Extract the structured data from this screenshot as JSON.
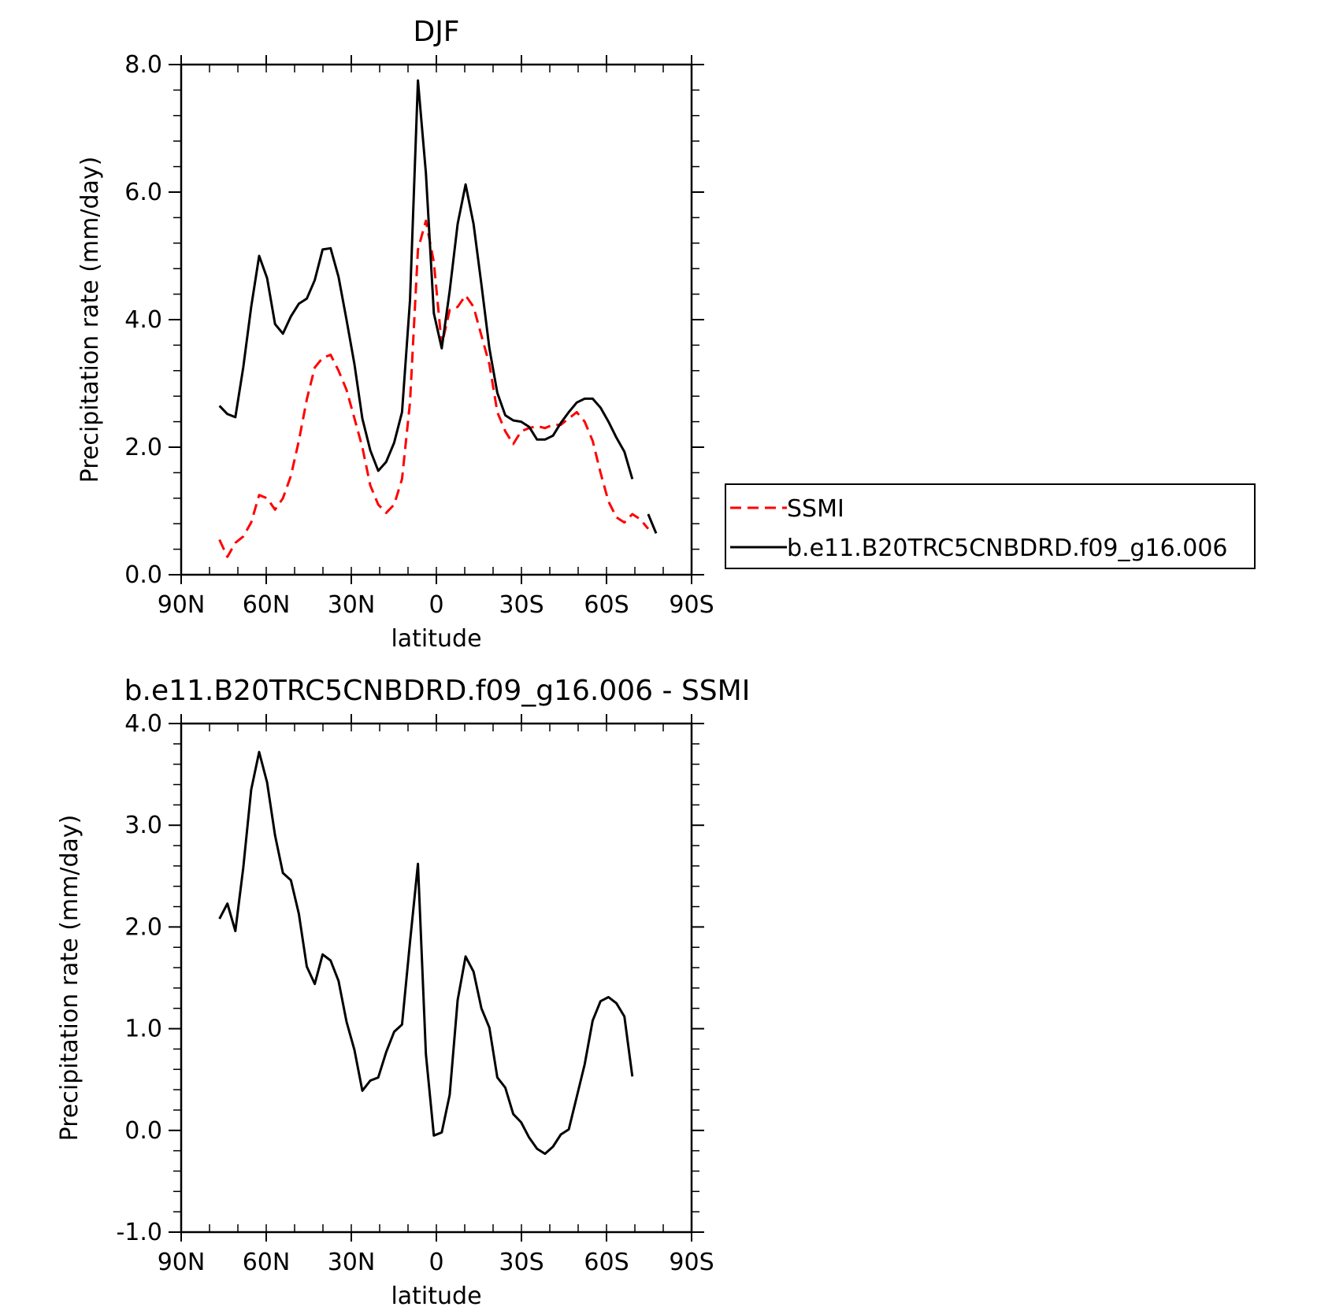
{
  "chart_data": [
    {
      "type": "line",
      "title": "DJF",
      "xlabel": "latitude",
      "ylabel": "Precipitation rate (mm/day)",
      "xlim": [
        90,
        -90
      ],
      "ylim": [
        0,
        8
      ],
      "xticks": [
        {
          "v": 90,
          "label": "90N"
        },
        {
          "v": 60,
          "label": "60N"
        },
        {
          "v": 30,
          "label": "30N"
        },
        {
          "v": 0,
          "label": "0"
        },
        {
          "v": -30,
          "label": "30S"
        },
        {
          "v": -60,
          "label": "60S"
        },
        {
          "v": -90,
          "label": "90S"
        }
      ],
      "yticks": [
        {
          "v": 0,
          "label": "0.0"
        },
        {
          "v": 2,
          "label": "2.0"
        },
        {
          "v": 4,
          "label": "4.0"
        },
        {
          "v": 6,
          "label": "6.0"
        },
        {
          "v": 8,
          "label": "8.0"
        }
      ],
      "legend": {
        "placement": "right"
      },
      "series": [
        {
          "name": "SSMI",
          "color": "#ff0000",
          "dash": true,
          "x": [
            76.5,
            73.7,
            70.9,
            68.1,
            65.3,
            62.5,
            59.7,
            56.9,
            54.1,
            51.3,
            48.5,
            45.7,
            42.9,
            40.1,
            37.3,
            34.5,
            31.7,
            28.9,
            26.1,
            23.3,
            20.5,
            17.7,
            14.9,
            12.1,
            9.3,
            6.5,
            3.7,
            0.9,
            -1.9,
            -4.7,
            -7.5,
            -10.3,
            -13.1,
            -15.9,
            -18.7,
            -21.5,
            -24.3,
            -27.1,
            -29.9,
            -32.7,
            -35.5,
            -38.3,
            -41.1,
            -43.9,
            -46.7,
            -49.5,
            -52.3,
            -55.1,
            -57.9,
            -60.7,
            -63.5,
            -66.3,
            -69.1,
            -71.9,
            -74.7
          ],
          "y": [
            0.55,
            0.28,
            0.5,
            0.6,
            0.82,
            1.25,
            1.2,
            1.02,
            1.2,
            1.55,
            2.1,
            2.75,
            3.25,
            3.4,
            3.45,
            3.2,
            2.9,
            2.45,
            2.0,
            1.4,
            1.1,
            0.97,
            1.1,
            1.5,
            2.7,
            5.1,
            5.55,
            4.9,
            3.6,
            4.15,
            4.2,
            4.38,
            4.2,
            3.75,
            3.3,
            2.55,
            2.25,
            2.05,
            2.25,
            2.3,
            2.33,
            2.3,
            2.35,
            2.35,
            2.45,
            2.55,
            2.4,
            2.1,
            1.6,
            1.15,
            0.9,
            0.82,
            0.95,
            0.87,
            0.72
          ]
        },
        {
          "name": "b.e11.B20TRC5CNBDRD.f09_g16.006",
          "color": "#000000",
          "dash": false,
          "x": [
            76.5,
            73.7,
            70.9,
            68.1,
            65.3,
            62.5,
            59.7,
            56.9,
            54.1,
            51.3,
            48.5,
            45.7,
            42.9,
            40.1,
            37.3,
            34.5,
            31.7,
            28.9,
            26.1,
            23.3,
            20.5,
            17.7,
            14.9,
            12.1,
            9.3,
            6.5,
            3.7,
            0.9,
            -1.9,
            -4.7,
            -7.5,
            -10.3,
            -13.1,
            -15.9,
            -18.7,
            -21.5,
            -24.3,
            -27.1,
            -29.9,
            -32.7,
            -35.5,
            -38.3,
            -41.1,
            -43.9,
            -46.7,
            -49.5,
            -52.3,
            -55.1,
            -57.9,
            -60.7,
            -63.5,
            -66.3,
            -69.1,
            null,
            -74.7,
            -77.5
          ],
          "y": [
            2.65,
            2.52,
            2.47,
            3.25,
            4.2,
            5.0,
            4.65,
            3.93,
            3.78,
            4.05,
            4.25,
            4.33,
            4.62,
            5.1,
            5.12,
            4.67,
            4.0,
            3.3,
            2.45,
            1.95,
            1.63,
            1.77,
            2.07,
            2.55,
            4.3,
            7.75,
            6.3,
            4.1,
            3.55,
            4.45,
            5.5,
            6.12,
            5.5,
            4.55,
            3.55,
            2.85,
            2.5,
            2.42,
            2.4,
            2.32,
            2.12,
            2.12,
            2.18,
            2.38,
            2.55,
            2.7,
            2.76,
            2.76,
            2.62,
            2.4,
            2.15,
            1.93,
            1.5,
            null,
            0.95,
            0.65
          ]
        }
      ]
    },
    {
      "type": "line",
      "title": "b.e11.B20TRC5CNBDRD.f09_g16.006 - SSMI",
      "xlabel": "latitude",
      "ylabel": "Precipitation rate (mm/day)",
      "xlim": [
        90,
        -90
      ],
      "ylim": [
        -1,
        4
      ],
      "xticks": [
        {
          "v": 90,
          "label": "90N"
        },
        {
          "v": 60,
          "label": "60N"
        },
        {
          "v": 30,
          "label": "30N"
        },
        {
          "v": 0,
          "label": "0"
        },
        {
          "v": -30,
          "label": "30S"
        },
        {
          "v": -60,
          "label": "60S"
        },
        {
          "v": -90,
          "label": "90S"
        }
      ],
      "yticks": [
        {
          "v": -1,
          "label": "-1.0"
        },
        {
          "v": 0,
          "label": "0.0"
        },
        {
          "v": 1,
          "label": "1.0"
        },
        {
          "v": 2,
          "label": "2.0"
        },
        {
          "v": 3,
          "label": "3.0"
        },
        {
          "v": 4,
          "label": "4.0"
        }
      ],
      "series": [
        {
          "color": "#000000",
          "dash": false,
          "x": [
            76.5,
            73.7,
            70.9,
            68.1,
            65.3,
            62.5,
            59.7,
            56.9,
            54.1,
            51.3,
            48.5,
            45.7,
            42.9,
            40.1,
            37.3,
            34.5,
            31.7,
            28.9,
            26.1,
            23.3,
            20.5,
            17.7,
            14.9,
            12.1,
            9.3,
            6.5,
            3.7,
            0.9,
            -1.9,
            -4.7,
            -7.5,
            -10.3,
            -13.1,
            -15.9,
            -18.7,
            -21.5,
            -24.3,
            -27.1,
            -29.9,
            -32.7,
            -35.5,
            -38.3,
            -41.1,
            -43.9,
            -46.7,
            -49.5,
            -52.3,
            -55.1,
            -57.9,
            -60.7,
            -63.5,
            -66.3,
            -69.1
          ],
          "y": [
            2.08,
            2.23,
            1.96,
            2.58,
            3.35,
            3.72,
            3.42,
            2.9,
            2.53,
            2.46,
            2.13,
            1.61,
            1.44,
            1.73,
            1.67,
            1.47,
            1.07,
            0.79,
            0.39,
            0.49,
            0.52,
            0.77,
            0.97,
            1.04,
            1.85,
            2.62,
            0.75,
            -0.05,
            -0.02,
            0.35,
            1.28,
            1.71,
            1.56,
            1.2,
            1.01,
            0.52,
            0.42,
            0.16,
            0.08,
            -0.07,
            -0.18,
            -0.23,
            -0.16,
            -0.04,
            0.01,
            0.33,
            0.65,
            1.08,
            1.27,
            1.31,
            1.25,
            1.12,
            0.53
          ]
        }
      ]
    }
  ]
}
